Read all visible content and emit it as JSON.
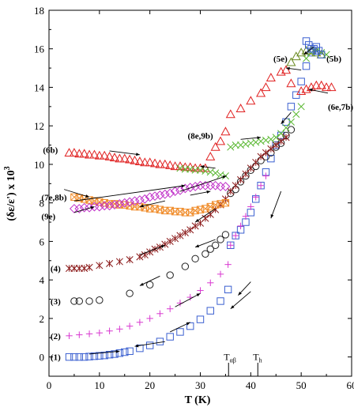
{
  "chart_data": {
    "type": "scatter",
    "xlabel": "T (K)",
    "ylabel": "(δε/ε') x 10",
    "ylabel_exp": "3",
    "xlim": [
      0,
      60
    ],
    "ylim": [
      -1,
      18
    ],
    "xticks": [
      "0",
      "10",
      "20",
      "30",
      "40",
      "50",
      "60"
    ],
    "yticks": [
      "0",
      "2",
      "4",
      "6",
      "8",
      "10",
      "12",
      "14",
      "16",
      "18"
    ],
    "vlines": [
      {
        "x": 35.6,
        "label_main": "T",
        "label_sub": "αβ"
      },
      {
        "x": 41.4,
        "label_main": "T",
        "label_sub": "h"
      }
    ],
    "series": [
      {
        "name": "(1)",
        "marker": "square",
        "color": "#3a5fd0",
        "x": [
          4,
          5,
          6,
          7,
          8,
          9,
          10,
          11,
          12,
          13,
          14,
          15,
          16,
          18,
          20,
          22,
          24,
          26,
          28,
          30,
          32,
          34,
          35.5,
          36,
          37,
          38,
          39,
          40,
          41,
          42,
          43,
          44,
          45,
          46,
          47,
          48,
          49,
          50,
          51,
          52,
          53
        ],
        "y": [
          0,
          0,
          0,
          0,
          0.02,
          0.04,
          0.06,
          0.08,
          0.12,
          0.15,
          0.2,
          0.25,
          0.3,
          0.45,
          0.6,
          0.8,
          1.05,
          1.3,
          1.6,
          1.95,
          2.4,
          2.9,
          3.5,
          5.8,
          6.3,
          6.6,
          7.0,
          7.5,
          8.2,
          8.9,
          9.6,
          10.3,
          11.0,
          11.5,
          12.2,
          13.0,
          13.6,
          14.3,
          15.1,
          15.8,
          16.1
        ]
      },
      {
        "name": "(2)",
        "marker": "plus",
        "color": "#d838d0",
        "x": [
          4,
          6,
          8,
          10,
          12,
          14,
          16,
          18,
          20,
          22,
          24,
          26,
          28,
          30,
          32,
          34,
          35.5,
          36,
          37,
          38,
          39,
          40,
          41,
          42,
          43
        ],
        "y": [
          1.1,
          1.15,
          1.2,
          1.25,
          1.35,
          1.45,
          1.6,
          1.8,
          2.0,
          2.25,
          2.5,
          2.8,
          3.1,
          3.45,
          3.85,
          4.3,
          4.8,
          5.8,
          6.3,
          6.8,
          7.3,
          7.8,
          8.3,
          8.9,
          9.4
        ]
      },
      {
        "name": "(3)",
        "marker": "circle",
        "color": "#222222",
        "x": [
          5,
          6,
          8,
          10,
          16,
          20,
          24,
          27,
          29,
          31,
          32,
          33,
          34,
          35,
          36,
          37,
          38,
          39,
          40,
          41,
          42,
          43,
          44,
          45,
          46,
          47,
          48
        ],
        "y": [
          2.9,
          2.9,
          2.9,
          2.95,
          3.3,
          3.75,
          4.25,
          4.7,
          5.1,
          5.35,
          5.6,
          5.8,
          6.1,
          6.35,
          8.5,
          8.7,
          9.1,
          9.4,
          9.7,
          9.9,
          10.2,
          10.4,
          10.6,
          10.9,
          11.1,
          11.5,
          11.8
        ]
      },
      {
        "name": "(4)",
        "marker": "asterisk",
        "color": "#8b1a1a",
        "x": [
          4,
          5,
          6,
          7,
          8,
          10,
          12,
          14,
          16,
          18,
          19,
          20,
          21,
          22,
          23,
          24,
          25,
          26,
          27,
          28,
          29,
          30,
          31,
          32,
          33,
          34,
          35,
          36,
          37,
          38,
          39,
          40,
          41,
          42,
          43,
          44,
          45,
          46,
          47
        ],
        "y": [
          4.6,
          4.6,
          4.6,
          4.6,
          4.65,
          4.75,
          4.85,
          4.95,
          5.05,
          5.2,
          5.3,
          5.45,
          5.6,
          5.7,
          5.85,
          6.0,
          6.15,
          6.3,
          6.45,
          6.6,
          6.8,
          6.95,
          7.2,
          7.4,
          7.65,
          7.9,
          8.2,
          8.6,
          8.9,
          9.2,
          9.5,
          9.8,
          10.1,
          10.4,
          10.6,
          10.8,
          11.0,
          11.2,
          11.4
        ]
      },
      {
        "name": "(7e,8b)",
        "marker": "xsquare",
        "color": "#f08c2a",
        "x": [
          5,
          6,
          7,
          8,
          9,
          10,
          11,
          12,
          13,
          14,
          15,
          16,
          17,
          18,
          19,
          20,
          21,
          22,
          23,
          24,
          25,
          26,
          27,
          28,
          29,
          30,
          31,
          32,
          33,
          34,
          35
        ],
        "y": [
          8.3,
          8.25,
          8.2,
          8.15,
          8.1,
          8.05,
          8.0,
          7.95,
          7.95,
          7.9,
          7.9,
          7.85,
          7.8,
          7.8,
          7.75,
          7.7,
          7.7,
          7.65,
          7.6,
          7.6,
          7.55,
          7.55,
          7.5,
          7.5,
          7.6,
          7.65,
          7.7,
          7.8,
          7.9,
          7.95,
          8.0
        ]
      },
      {
        "name": "(9e)",
        "marker": "diamond",
        "color": "#c030c8",
        "x": [
          5,
          6,
          7,
          8,
          9,
          10,
          11,
          12,
          13,
          14,
          15,
          16,
          17,
          18,
          19,
          20,
          21,
          22,
          23,
          24,
          25,
          26,
          27,
          28,
          29,
          30,
          31,
          32,
          33,
          34,
          35
        ],
        "y": [
          7.7,
          7.7,
          7.75,
          7.75,
          7.8,
          7.8,
          7.85,
          7.85,
          7.9,
          7.95,
          8.0,
          8.05,
          8.1,
          8.15,
          8.2,
          8.3,
          8.35,
          8.4,
          8.45,
          8.5,
          8.6,
          8.65,
          8.75,
          8.8,
          8.85,
          8.9,
          8.9,
          8.9,
          8.9,
          8.85,
          8.85
        ]
      },
      {
        "name": "(6b)",
        "marker": "triangle",
        "color": "#e02020",
        "x": [
          4,
          5,
          6,
          7,
          8,
          9,
          10,
          11,
          12,
          13,
          14,
          15,
          16,
          17,
          18,
          19,
          20,
          21,
          22,
          23,
          24,
          25,
          26,
          27,
          28,
          29,
          30,
          31,
          32,
          33,
          34,
          35,
          36,
          38,
          40,
          42,
          43,
          44,
          46,
          47,
          48,
          50,
          51,
          52,
          53,
          54,
          55,
          56
        ],
        "y": [
          10.6,
          10.6,
          10.55,
          10.55,
          10.5,
          10.5,
          10.45,
          10.45,
          10.4,
          10.35,
          10.3,
          10.3,
          10.25,
          10.2,
          10.15,
          10.1,
          10.1,
          10.05,
          10.0,
          10.0,
          9.95,
          9.9,
          9.9,
          9.85,
          9.85,
          9.8,
          9.8,
          9.8,
          10.4,
          10.9,
          11.2,
          11.7,
          12.6,
          12.9,
          13.3,
          13.7,
          14.0,
          14.5,
          14.8,
          14.9,
          14.2,
          13.8,
          13.9,
          14.0,
          14.1,
          14.1,
          14.0,
          14.0
        ]
      },
      {
        "name": "(8e,9b)",
        "marker": "x",
        "color": "#5ab832",
        "x": [
          26,
          27,
          28,
          29,
          30,
          31,
          32,
          33,
          34,
          35,
          36,
          37,
          38,
          39,
          40,
          41,
          42,
          43,
          44,
          45,
          46,
          47,
          48,
          49,
          50,
          51,
          52,
          53,
          54,
          55
        ],
        "y": [
          9.8,
          9.75,
          9.75,
          9.7,
          9.7,
          9.65,
          9.6,
          9.55,
          9.45,
          9.4,
          10.9,
          11.0,
          11.0,
          11.05,
          11.1,
          11.15,
          11.2,
          11.25,
          11.3,
          11.4,
          11.6,
          11.9,
          12.2,
          12.6,
          13.0,
          15.5,
          15.8,
          15.9,
          15.8,
          15.7
        ]
      },
      {
        "name": "(5e)",
        "marker": "triangle",
        "color": "#6a8a20",
        "x": [
          48,
          49,
          50,
          51,
          52,
          53,
          54
        ],
        "y": [
          15.3,
          15.6,
          15.8,
          15.9,
          15.9,
          15.8,
          15.7
        ]
      },
      {
        "name": "(5b)",
        "marker": "square",
        "color": "#3a5fd0",
        "x": [
          51,
          51.5,
          52,
          52.5,
          53,
          53.5,
          54
        ],
        "y": [
          16.4,
          16.2,
          16.0,
          16.0,
          15.9,
          15.9,
          15.7
        ]
      }
    ],
    "annotations": [
      {
        "text": "(1)",
        "x": 0.3,
        "y": 0
      },
      {
        "text": "(2)",
        "x": 0.3,
        "y": 1.1
      },
      {
        "text": "(3)",
        "x": 0.3,
        "y": 2.9
      },
      {
        "text": "(4)",
        "x": 0.3,
        "y": 4.6
      },
      {
        "text": "(9e)",
        "x": -1.5,
        "y": 7.3
      },
      {
        "text": "(7e,8b)",
        "x": -1.5,
        "y": 8.3
      },
      {
        "text": "(6b)",
        "x": -1.2,
        "y": 10.75
      },
      {
        "text": "(8e,9b)",
        "x": 27.5,
        "y": 11.5
      },
      {
        "text": "(5e)",
        "x": 44.5,
        "y": 15.5
      },
      {
        "text": "(5b)",
        "x": 55,
        "y": 15.5
      },
      {
        "text": "(6e,7b)",
        "x": 55.3,
        "y": 13.0
      }
    ]
  }
}
